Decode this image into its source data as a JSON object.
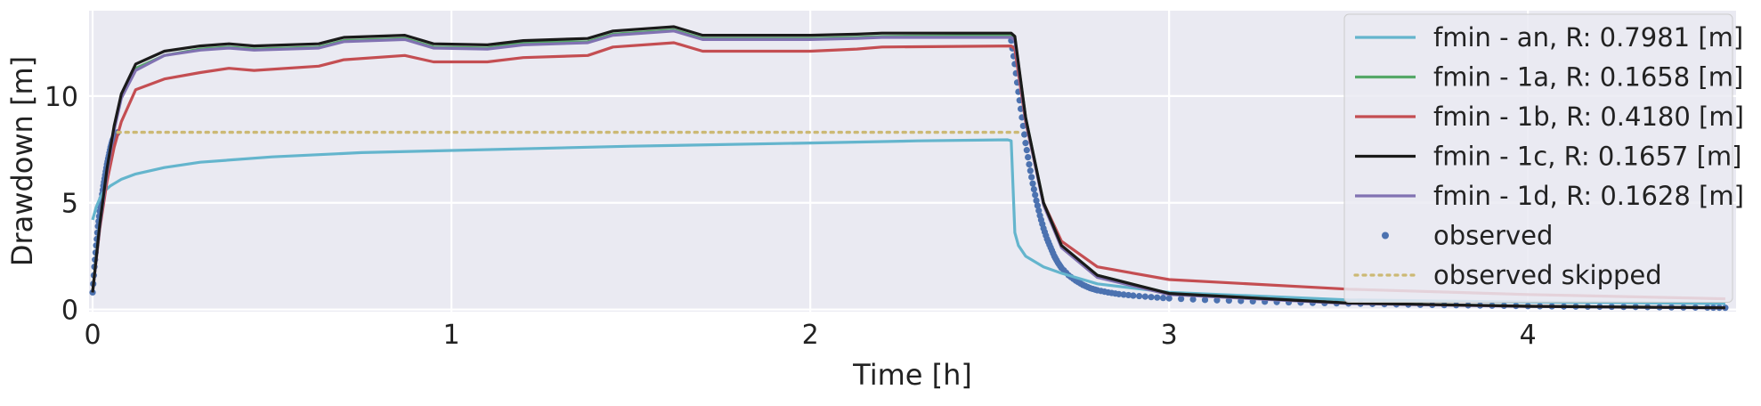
{
  "chart_data": {
    "type": "line",
    "title": "",
    "xlabel": "Time [h]",
    "ylabel": "Drawdown [m]",
    "xlim": [
      -0.01,
      4.58
    ],
    "ylim": [
      -0.1,
      14.0
    ],
    "xticks": [
      0,
      1,
      2,
      3,
      4
    ],
    "yticks": [
      0,
      5,
      10
    ],
    "grid": true,
    "background": "#EAEAF2",
    "legend_position": "top-right",
    "series": [
      {
        "name": "fmin - an, R: 0.7981 [m]",
        "color": "#64B5CD",
        "style": "solid",
        "x": [
          0.0,
          0.01,
          0.02,
          0.03,
          0.05,
          0.08,
          0.12,
          0.2,
          0.3,
          0.5,
          0.75,
          1.0,
          1.5,
          2.0,
          2.3,
          2.55,
          2.56,
          2.57,
          2.58,
          2.6,
          2.65,
          2.7,
          2.8,
          3.0,
          3.5,
          4.0,
          4.55
        ],
        "y": [
          4.2,
          4.8,
          5.2,
          5.5,
          5.8,
          6.1,
          6.35,
          6.65,
          6.9,
          7.15,
          7.35,
          7.45,
          7.65,
          7.8,
          7.9,
          7.95,
          7.9,
          3.6,
          3.0,
          2.5,
          2.0,
          1.7,
          1.2,
          0.8,
          0.45,
          0.35,
          0.28
        ]
      },
      {
        "name": "fmin - 1a, R: 0.1658 [m]",
        "color": "#55A868",
        "style": "solid",
        "x": [
          0.0,
          0.02,
          0.04,
          0.06,
          0.08,
          0.12,
          0.2,
          0.3,
          0.38,
          0.45,
          0.63,
          0.7,
          0.87,
          0.95,
          1.1,
          1.2,
          1.38,
          1.45,
          1.62,
          1.7,
          2.0,
          2.13,
          2.2,
          2.56,
          2.57,
          2.6,
          2.65,
          2.7,
          2.8,
          3.0,
          3.5,
          4.0,
          4.55
        ],
        "y": [
          0.8,
          4.0,
          6.5,
          8.5,
          10.0,
          11.3,
          11.9,
          12.2,
          12.3,
          12.2,
          12.3,
          12.6,
          12.7,
          12.3,
          12.25,
          12.5,
          12.55,
          12.9,
          13.1,
          12.7,
          12.7,
          12.75,
          12.8,
          12.85,
          12.7,
          9.0,
          5.0,
          3.0,
          1.6,
          0.75,
          0.3,
          0.15,
          0.08
        ]
      },
      {
        "name": "fmin - 1b, R: 0.4180 [m]",
        "color": "#C44E52",
        "style": "solid",
        "x": [
          0.0,
          0.02,
          0.04,
          0.06,
          0.08,
          0.12,
          0.2,
          0.3,
          0.38,
          0.45,
          0.63,
          0.7,
          0.87,
          0.95,
          1.1,
          1.2,
          1.38,
          1.45,
          1.62,
          1.7,
          2.0,
          2.13,
          2.2,
          2.56,
          2.57,
          2.6,
          2.65,
          2.7,
          2.8,
          3.0,
          3.5,
          4.0,
          4.55
        ],
        "y": [
          0.8,
          3.8,
          6.0,
          7.6,
          8.8,
          10.3,
          10.8,
          11.1,
          11.3,
          11.2,
          11.4,
          11.7,
          11.9,
          11.6,
          11.6,
          11.8,
          11.9,
          12.3,
          12.5,
          12.1,
          12.1,
          12.2,
          12.3,
          12.35,
          12.2,
          8.8,
          5.0,
          3.2,
          2.0,
          1.4,
          0.95,
          0.7,
          0.5
        ]
      },
      {
        "name": "fmin - 1c, R: 0.1657 [m]",
        "color": "#1A1A1A",
        "style": "solid",
        "x": [
          0.0,
          0.02,
          0.04,
          0.06,
          0.08,
          0.12,
          0.2,
          0.3,
          0.38,
          0.45,
          0.63,
          0.7,
          0.87,
          0.95,
          1.1,
          1.2,
          1.38,
          1.45,
          1.62,
          1.7,
          2.0,
          2.13,
          2.2,
          2.56,
          2.57,
          2.6,
          2.65,
          2.7,
          2.8,
          3.0,
          3.5,
          4.0,
          4.55
        ],
        "y": [
          0.8,
          4.0,
          6.6,
          8.6,
          10.1,
          11.5,
          12.1,
          12.35,
          12.45,
          12.35,
          12.45,
          12.75,
          12.85,
          12.45,
          12.4,
          12.6,
          12.7,
          13.05,
          13.25,
          12.85,
          12.85,
          12.9,
          12.95,
          12.95,
          12.8,
          9.0,
          5.0,
          3.0,
          1.6,
          0.75,
          0.3,
          0.15,
          0.08
        ]
      },
      {
        "name": "fmin - 1d, R: 0.1628 [m]",
        "color": "#8172B2",
        "style": "solid",
        "x": [
          0.0,
          0.02,
          0.04,
          0.06,
          0.08,
          0.12,
          0.2,
          0.3,
          0.38,
          0.45,
          0.63,
          0.7,
          0.87,
          0.95,
          1.1,
          1.2,
          1.38,
          1.45,
          1.62,
          1.7,
          2.0,
          2.13,
          2.2,
          2.56,
          2.57,
          2.6,
          2.65,
          2.7,
          2.8,
          3.0,
          3.5,
          4.0,
          4.55
        ],
        "y": [
          0.8,
          3.9,
          6.4,
          8.4,
          9.9,
          11.2,
          11.9,
          12.15,
          12.25,
          12.15,
          12.25,
          12.55,
          12.65,
          12.25,
          12.2,
          12.4,
          12.5,
          12.85,
          13.05,
          12.65,
          12.65,
          12.7,
          12.75,
          12.75,
          12.6,
          8.9,
          4.9,
          2.9,
          1.5,
          0.7,
          0.28,
          0.14,
          0.07
        ]
      },
      {
        "name": "observed",
        "color": "#4C72B0",
        "style": "markers",
        "x": [
          0.0,
          0.005,
          0.01,
          0.015,
          0.02,
          0.025,
          0.03,
          0.035,
          0.04,
          0.045,
          0.05,
          0.055,
          0.06,
          0.065,
          0.07,
          2.56,
          2.57,
          2.58,
          2.59,
          2.6,
          2.61,
          2.62,
          2.63,
          2.64,
          2.65,
          2.66,
          2.67,
          2.68,
          2.69,
          2.7,
          2.72,
          2.74,
          2.76,
          2.78,
          2.8,
          2.83,
          2.86,
          2.9,
          2.95,
          3.0,
          3.1,
          3.2,
          3.3,
          3.4,
          3.5,
          3.6,
          3.7,
          3.8,
          3.9,
          4.0,
          4.1,
          4.2,
          4.3,
          4.4,
          4.5,
          4.55
        ],
        "y": [
          0.8,
          2.0,
          3.0,
          3.9,
          4.6,
          5.2,
          5.8,
          6.3,
          6.8,
          7.2,
          7.6,
          7.9,
          8.1,
          8.2,
          8.3,
          12.6,
          11.5,
          10.2,
          9.0,
          7.8,
          6.8,
          5.9,
          5.1,
          4.4,
          3.8,
          3.3,
          2.9,
          2.5,
          2.2,
          1.95,
          1.6,
          1.35,
          1.15,
          1.0,
          0.9,
          0.8,
          0.72,
          0.65,
          0.58,
          0.52,
          0.45,
          0.4,
          0.35,
          0.31,
          0.28,
          0.25,
          0.22,
          0.2,
          0.18,
          0.16,
          0.14,
          0.13,
          0.12,
          0.1,
          0.09,
          0.08
        ]
      },
      {
        "name": "observed skipped",
        "color": "#CCB974",
        "style": "dotted",
        "x": [
          0.07,
          2.58
        ],
        "y": [
          8.3,
          8.3
        ]
      }
    ]
  }
}
